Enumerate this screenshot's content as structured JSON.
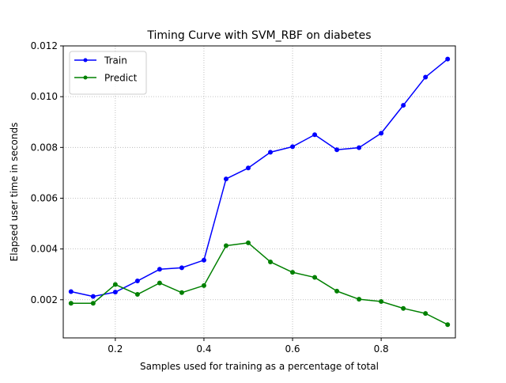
{
  "chart_data": {
    "type": "line",
    "title": "Timing Curve with SVM_RBF on diabetes",
    "xlabel": "Samples used for training as a percentage of total",
    "ylabel": "Elapsed user time in seconds",
    "x": [
      0.1,
      0.15,
      0.2,
      0.25,
      0.3,
      0.35,
      0.4,
      0.45,
      0.5,
      0.55,
      0.6,
      0.65,
      0.7,
      0.75,
      0.8,
      0.85,
      0.9,
      0.95
    ],
    "series": [
      {
        "name": "Train",
        "color": "#0000ff",
        "marker": "circle",
        "values": [
          0.00232,
          0.00213,
          0.0023,
          0.00274,
          0.0032,
          0.00326,
          0.00356,
          0.00676,
          0.00719,
          0.00781,
          0.00803,
          0.0085,
          0.00791,
          0.00799,
          0.00856,
          0.00966,
          0.01077,
          0.01148
        ]
      },
      {
        "name": "Predict",
        "color": "#008000",
        "marker": "circle",
        "values": [
          0.00186,
          0.00186,
          0.0026,
          0.00221,
          0.00266,
          0.00228,
          0.00256,
          0.00413,
          0.00424,
          0.00349,
          0.00308,
          0.00288,
          0.00234,
          0.00202,
          0.00193,
          0.00166,
          0.00146,
          0.00102
        ]
      }
    ],
    "xlim": [
      0.0825,
      0.9675
    ],
    "ylim": [
      0.000497,
      0.012
    ],
    "xticks": [
      0.2,
      0.4,
      0.6,
      0.8
    ],
    "xtick_labels": [
      "0.2",
      "0.4",
      "0.6",
      "0.8"
    ],
    "yticks": [
      0.002,
      0.004,
      0.006,
      0.008,
      0.01,
      0.012
    ],
    "ytick_labels": [
      "0.002",
      "0.004",
      "0.006",
      "0.008",
      "0.010",
      "0.012"
    ],
    "grid": true,
    "legend_position": "top-left"
  }
}
